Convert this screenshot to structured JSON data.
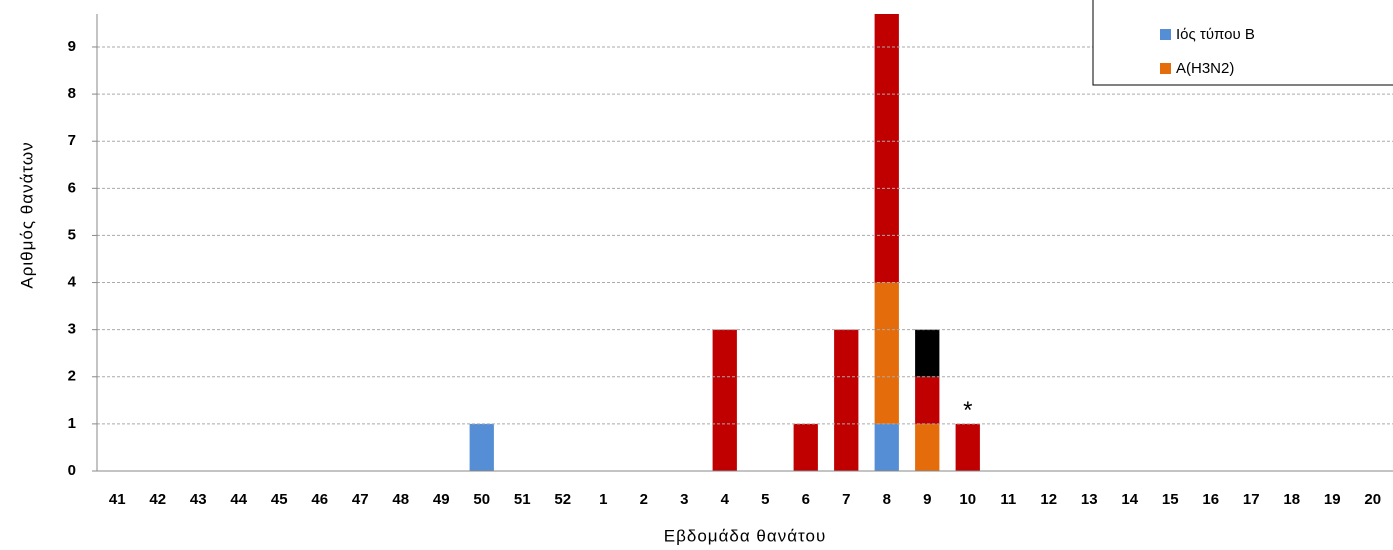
{
  "chart_data": {
    "type": "stacked-bar",
    "x_label": "Εβδομάδα θανάτου",
    "y_label": "Αριθμός θανάτων",
    "categories": [
      41,
      42,
      43,
      44,
      45,
      46,
      47,
      48,
      49,
      50,
      51,
      52,
      1,
      2,
      3,
      4,
      5,
      6,
      7,
      8,
      9,
      10,
      11,
      12,
      13,
      14,
      15,
      16,
      17,
      18,
      19,
      20
    ],
    "series": [
      {
        "name": "Ιός τύπου B",
        "color": "#558ed5",
        "values": [
          0,
          0,
          0,
          0,
          0,
          0,
          0,
          0,
          0,
          1,
          0,
          0,
          0,
          0,
          0,
          0,
          0,
          0,
          0,
          1,
          0,
          0,
          0,
          0,
          0,
          0,
          0,
          0,
          0,
          0,
          0,
          0
        ]
      },
      {
        "name": "A(H3N2)",
        "color": "#e46c0a",
        "values": [
          0,
          0,
          0,
          0,
          0,
          0,
          0,
          0,
          0,
          0,
          0,
          0,
          0,
          0,
          0,
          0,
          0,
          0,
          0,
          3,
          1,
          0,
          0,
          0,
          0,
          0,
          0,
          0,
          0,
          0,
          0,
          0
        ]
      },
      {
        "color": "#c00000",
        "values": [
          0,
          0,
          0,
          0,
          0,
          0,
          0,
          0,
          0,
          0,
          0,
          0,
          0,
          0,
          0,
          3,
          0,
          1,
          3,
          6,
          1,
          1,
          0,
          0,
          0,
          0,
          0,
          0,
          0,
          0,
          0,
          0
        ]
      },
      {
        "color": "#000000",
        "values": [
          0,
          0,
          0,
          0,
          0,
          0,
          0,
          0,
          0,
          0,
          0,
          0,
          0,
          0,
          0,
          0,
          0,
          0,
          0,
          0,
          1,
          0,
          0,
          0,
          0,
          0,
          0,
          0,
          0,
          0,
          0,
          0
        ]
      }
    ],
    "annotations": [
      {
        "text": "*",
        "category": 10
      }
    ],
    "ylim": [
      0,
      9.7
    ],
    "yticks": [
      0,
      1,
      2,
      3,
      4,
      5,
      6,
      7,
      8,
      9
    ],
    "grid": true,
    "legend": "top-right"
  }
}
